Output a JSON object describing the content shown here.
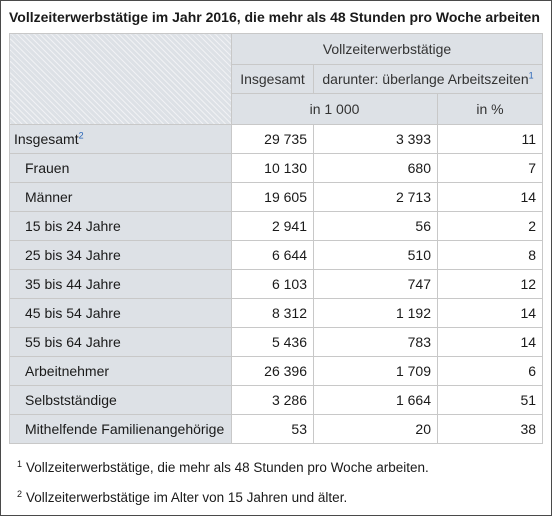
{
  "title": "Vollzeiterwerbstätige im Jahr 2016, die mehr als 48 Stunden pro Woche arbeiten",
  "header": {
    "group": "Vollzeiterwerbstätige",
    "col1": "Insgesamt",
    "col2": "darunter: überlange Arbeitszeiten",
    "col2_note": "1",
    "unit1": "in 1 000",
    "unit2": "in %"
  },
  "rows": [
    {
      "label": "Insgesamt",
      "note": "2",
      "total": "29 735",
      "long": "3 393",
      "pct": "11"
    },
    {
      "label": "Frauen",
      "total": "10 130",
      "long": "680",
      "pct": "7"
    },
    {
      "label": "Männer",
      "total": "19 605",
      "long": "2 713",
      "pct": "14"
    },
    {
      "label": "15 bis 24 Jahre",
      "total": "2 941",
      "long": "56",
      "pct": "2"
    },
    {
      "label": "25 bis 34 Jahre",
      "total": "6 644",
      "long": "510",
      "pct": "8"
    },
    {
      "label": "35 bis 44 Jahre",
      "total": "6 103",
      "long": "747",
      "pct": "12"
    },
    {
      "label": "45 bis 54 Jahre",
      "total": "8 312",
      "long": "1 192",
      "pct": "14"
    },
    {
      "label": "55 bis 64 Jahre",
      "total": "5 436",
      "long": "783",
      "pct": "14"
    },
    {
      "label": "Arbeitnehmer",
      "total": "26 396",
      "long": "1 709",
      "pct": "6"
    },
    {
      "label": "Selbstständige",
      "total": "3 286",
      "long": "1 664",
      "pct": "51"
    },
    {
      "label": "Mithelfende Familienangehörige",
      "total": "53",
      "long": "20",
      "pct": "38"
    }
  ],
  "footnotes": [
    {
      "mark": "1",
      "text": "Vollzeiterwerbstätige, die mehr als 48 Stunden pro Woche arbeiten."
    },
    {
      "mark": "2",
      "text": "Vollzeiterwerbstätige im Alter von 15 Jahren und älter."
    }
  ]
}
